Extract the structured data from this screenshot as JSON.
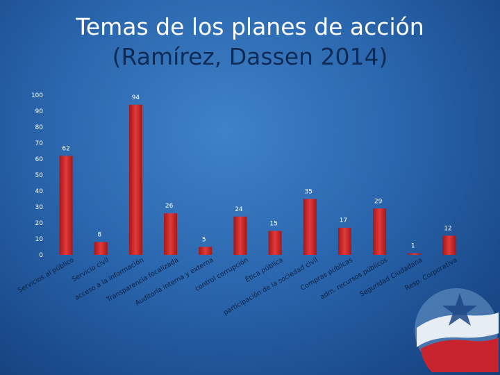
{
  "slide": {
    "title_line1": "Temas de los planes de acción",
    "title_line2": "(Ramírez, Dassen 2014)"
  },
  "colors": {
    "bar": "#d42a2a",
    "bar_dark": "#a51717",
    "axis_text": "#ffffff",
    "title_main": "#ffffff",
    "title_sub": "#0f2a55"
  },
  "chart_data": {
    "type": "bar",
    "categories": [
      "Servicios al público",
      "Servicio civil",
      "acceso a la información",
      "Transparencia focalizada",
      "Auditoría interna y externa",
      "control corrupción",
      "Ética pública",
      "participación de la sociedad civil",
      "Compras públicas",
      "adm. recursos públicos",
      "Seguridad Ciudadana",
      "Resp. Corporativa"
    ],
    "values": [
      62,
      8,
      94,
      26,
      5,
      24,
      15,
      35,
      17,
      29,
      1,
      12
    ],
    "ylim": [
      0,
      100
    ],
    "yticks": [
      0,
      10,
      20,
      30,
      40,
      50,
      60,
      70,
      80,
      90,
      100
    ],
    "grid": false,
    "legend": "none"
  }
}
